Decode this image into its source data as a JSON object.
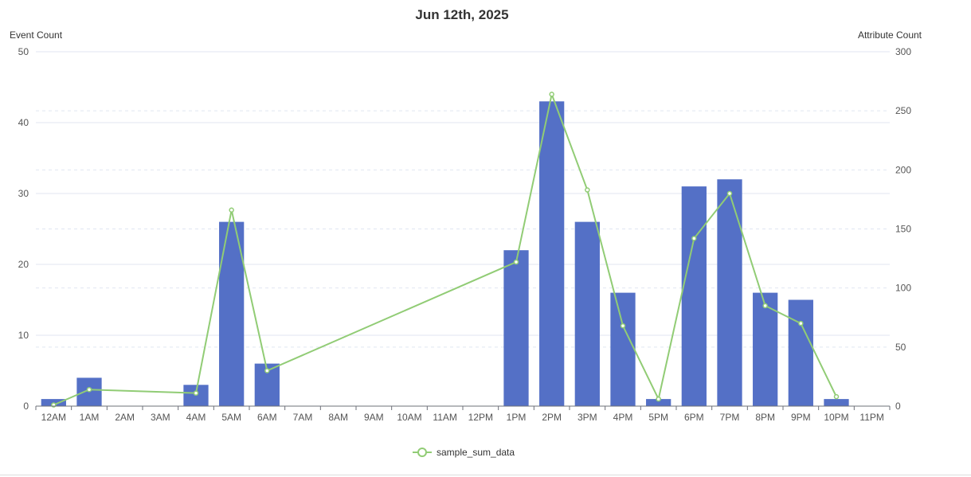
{
  "chart_data": {
    "type": "bar",
    "title": "Jun 12th, 2025",
    "categories": [
      "12AM",
      "1AM",
      "2AM",
      "3AM",
      "4AM",
      "5AM",
      "6AM",
      "7AM",
      "8AM",
      "9AM",
      "10AM",
      "11AM",
      "12PM",
      "1PM",
      "2PM",
      "3PM",
      "4PM",
      "5PM",
      "6PM",
      "7PM",
      "8PM",
      "9PM",
      "10PM",
      "11PM"
    ],
    "y_left": {
      "label": "Event Count",
      "ylim": [
        0,
        50
      ],
      "ticks": [
        "0",
        "10",
        "20",
        "30",
        "40",
        "50"
      ]
    },
    "y_right": {
      "label": "Attribute Count",
      "ylim": [
        0,
        300
      ],
      "ticks": [
        "0",
        "50",
        "100",
        "150",
        "200",
        "250",
        "300"
      ]
    },
    "grid": true,
    "legend_position": "bottom-center",
    "bars": {
      "axis": "left",
      "color": "#5470c6",
      "values": [
        1,
        4,
        null,
        null,
        3,
        26,
        6,
        null,
        null,
        null,
        null,
        null,
        null,
        22,
        43,
        26,
        16,
        1,
        31,
        32,
        16,
        15,
        1,
        null
      ]
    },
    "series": [
      {
        "name": "sample_sum_data",
        "type": "line",
        "axis": "right",
        "color": "#91cc75",
        "values": [
          1,
          14,
          null,
          null,
          11,
          166,
          30,
          null,
          null,
          null,
          null,
          null,
          null,
          122,
          264,
          183,
          68,
          6,
          142,
          180,
          85,
          70,
          8,
          null
        ]
      }
    ]
  }
}
